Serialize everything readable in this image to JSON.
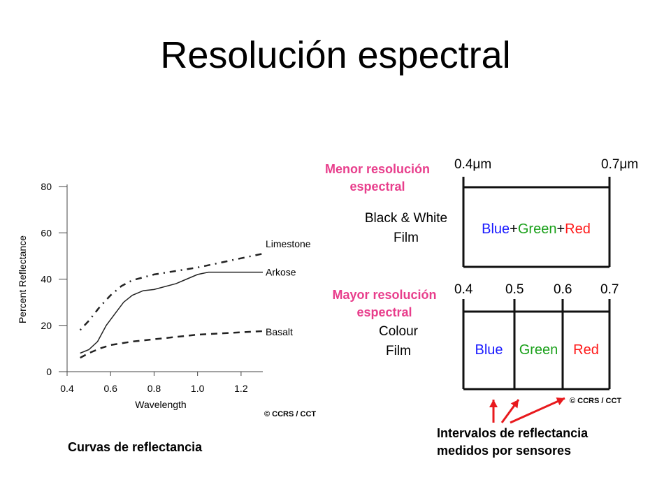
{
  "slide": {
    "title": "Resolución espectral",
    "caption_left": "Curvas de reflectancia",
    "label_low": [
      "Menor resolución",
      "espectral"
    ],
    "label_high": [
      "Mayor resolución",
      "espectral"
    ],
    "caption_right": [
      "Intervalos de reflectancia",
      "medidos por sensores"
    ]
  },
  "colors": {
    "accent_text": "#e83e8c",
    "arrow": "#e8191d",
    "blue": "#1a1aff",
    "green": "#1aa01a",
    "red": "#ff1a1a"
  },
  "chart_data": [
    {
      "type": "line",
      "ylabel": "Percent Reflectance",
      "xlabel": "Wavelength",
      "x_ticks": [
        "0.4",
        "0.6",
        "0.8",
        "1.0",
        "1.2"
      ],
      "y_ticks": [
        "0",
        "20",
        "40",
        "60",
        "80"
      ],
      "xlim": [
        0.4,
        1.3
      ],
      "ylim": [
        0,
        80
      ],
      "credit": "© CCRS / CCT",
      "series": [
        {
          "name": "Limestone",
          "style": "dash-dot",
          "points": [
            [
              0.46,
              18
            ],
            [
              0.5,
              22
            ],
            [
              0.55,
              28
            ],
            [
              0.6,
              33
            ],
            [
              0.65,
              37
            ],
            [
              0.7,
              39.5
            ],
            [
              0.8,
              42
            ],
            [
              0.9,
              43.5
            ],
            [
              1.0,
              45
            ],
            [
              1.1,
              47
            ],
            [
              1.2,
              49
            ],
            [
              1.3,
              51
            ]
          ]
        },
        {
          "name": "Arkose",
          "style": "solid",
          "points": [
            [
              0.46,
              8
            ],
            [
              0.5,
              9.5
            ],
            [
              0.54,
              13
            ],
            [
              0.58,
              20
            ],
            [
              0.62,
              25
            ],
            [
              0.66,
              30
            ],
            [
              0.7,
              33
            ],
            [
              0.75,
              35
            ],
            [
              0.8,
              35.5
            ],
            [
              0.9,
              38
            ],
            [
              0.95,
              40
            ],
            [
              1.0,
              42
            ],
            [
              1.05,
              43
            ],
            [
              1.1,
              43
            ],
            [
              1.2,
              43
            ],
            [
              1.3,
              43
            ]
          ]
        },
        {
          "name": "Basalt",
          "style": "dashed",
          "points": [
            [
              0.46,
              6
            ],
            [
              0.5,
              8
            ],
            [
              0.55,
              10
            ],
            [
              0.6,
              11.5
            ],
            [
              0.7,
              13
            ],
            [
              0.8,
              14
            ],
            [
              0.9,
              15
            ],
            [
              1.0,
              16
            ],
            [
              1.1,
              16.5
            ],
            [
              1.2,
              17
            ],
            [
              1.3,
              17.5
            ]
          ]
        }
      ]
    },
    {
      "type": "diagram",
      "units": "μm",
      "credit": "© CCRS / CCT",
      "panels": [
        {
          "film": [
            "Black & White",
            "Film"
          ],
          "ticks": [
            "0.4μm",
            "0.7μm"
          ],
          "bands": [
            "Blue",
            "Green",
            "Red"
          ],
          "joined": true,
          "joiner": "+"
        },
        {
          "film": [
            "Colour",
            "Film"
          ],
          "ticks": [
            "0.4",
            "0.5",
            "0.6",
            "0.7"
          ],
          "bands": [
            "Blue",
            "Green",
            "Red"
          ],
          "joined": false
        }
      ]
    }
  ]
}
